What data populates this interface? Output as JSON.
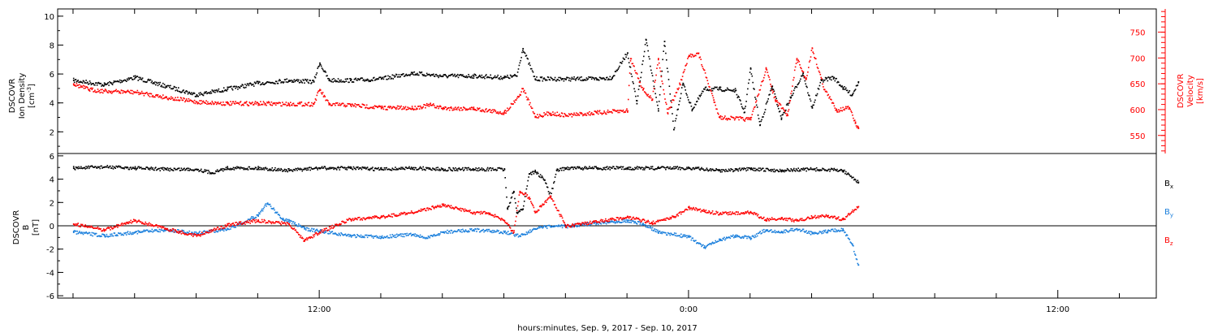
{
  "chart_data": [
    {
      "type": "scatter",
      "panel": "top",
      "y_left_label_lines": [
        "DSCOVR",
        "Ion Density"
      ],
      "y_left_unit_base": "[cm",
      "y_left_unit_sup": "-3",
      "y_left_unit_close": "]",
      "y_left_ticks": [
        "10",
        "8",
        "6",
        "4",
        "2"
      ],
      "ylim_left": [
        0.5,
        10.5
      ],
      "y_right_label_lines": [
        "DSCOVR",
        "Velocity",
        "[km/s]"
      ],
      "y_right_ticks": [
        "750",
        "700",
        "650",
        "600",
        "550"
      ],
      "ylim_right": [
        515,
        795
      ],
      "color_left": "#000000",
      "color_right": "#ff0000",
      "series": [
        {
          "axis": "left",
          "color": "#000000",
          "xy": [
            [
              4.0,
              5.6
            ],
            [
              5.0,
              5.3
            ],
            [
              6.0,
              5.8
            ],
            [
              7.0,
              5.2
            ],
            [
              8.0,
              4.6
            ],
            [
              9.0,
              5.0
            ],
            [
              10.0,
              5.4
            ],
            [
              11.0,
              5.6
            ],
            [
              11.8,
              5.5
            ],
            [
              12.0,
              6.8
            ],
            [
              12.3,
              5.6
            ],
            [
              13.0,
              5.6
            ],
            [
              14.0,
              5.7
            ],
            [
              15.0,
              6.1
            ],
            [
              16.0,
              5.9
            ],
            [
              17.0,
              5.9
            ],
            [
              18.0,
              5.8
            ],
            [
              18.4,
              5.9
            ],
            [
              18.6,
              7.8
            ],
            [
              19.0,
              5.7
            ],
            [
              20.0,
              5.7
            ],
            [
              21.0,
              5.7
            ],
            [
              21.5,
              5.8
            ],
            [
              22.0,
              7.5
            ],
            [
              22.3,
              4.0
            ],
            [
              22.6,
              8.4
            ],
            [
              23.0,
              3.5
            ],
            [
              23.2,
              8.3
            ],
            [
              23.5,
              2.2
            ],
            [
              23.8,
              5.4
            ],
            [
              24.1,
              3.6
            ],
            [
              24.5,
              5.0
            ],
            [
              25.0,
              5.0
            ],
            [
              25.5,
              4.9
            ],
            [
              25.8,
              3.4
            ],
            [
              26.0,
              6.4
            ],
            [
              26.3,
              2.5
            ],
            [
              26.7,
              5.2
            ],
            [
              27.0,
              3.0
            ],
            [
              27.3,
              4.4
            ],
            [
              27.7,
              6.1
            ],
            [
              28.0,
              3.7
            ],
            [
              28.3,
              5.6
            ],
            [
              28.7,
              5.8
            ],
            [
              29.0,
              5.1
            ],
            [
              29.3,
              4.6
            ],
            [
              29.5,
              5.5
            ]
          ]
        },
        {
          "axis": "right",
          "color": "#ff0000",
          "xy": [
            [
              4.0,
              651
            ],
            [
              4.5,
              640
            ],
            [
              5.0,
              637
            ],
            [
              6.0,
              635
            ],
            [
              7.0,
              625
            ],
            [
              8.0,
              616
            ],
            [
              9.0,
              613
            ],
            [
              10.0,
              613
            ],
            [
              11.0,
              612
            ],
            [
              11.8,
              612
            ],
            [
              12.0,
              640
            ],
            [
              12.3,
              611
            ],
            [
              13.0,
              610
            ],
            [
              14.0,
              605
            ],
            [
              15.0,
              604
            ],
            [
              15.6,
              610
            ],
            [
              16.0,
              604
            ],
            [
              17.0,
              603
            ],
            [
              18.0,
              595
            ],
            [
              18.5,
              630
            ],
            [
              18.6,
              642
            ],
            [
              19.0,
              588
            ],
            [
              19.5,
              594
            ],
            [
              20.0,
              590
            ],
            [
              21.0,
              595
            ],
            [
              22.0,
              599
            ],
            [
              22.1,
              700
            ],
            [
              22.5,
              640
            ],
            [
              22.8,
              620
            ],
            [
              23.0,
              700
            ],
            [
              23.3,
              595
            ],
            [
              23.7,
              650
            ],
            [
              24.0,
              705
            ],
            [
              24.3,
              710
            ],
            [
              24.8,
              620
            ],
            [
              25.0,
              586
            ],
            [
              26.0,
              582
            ],
            [
              26.5,
              680
            ],
            [
              26.8,
              620
            ],
            [
              27.2,
              590
            ],
            [
              27.5,
              700
            ],
            [
              27.8,
              660
            ],
            [
              28.0,
              720
            ],
            [
              28.4,
              640
            ],
            [
              28.8,
              600
            ],
            [
              29.2,
              605
            ],
            [
              29.4,
              575
            ],
            [
              29.5,
              565
            ]
          ]
        }
      ]
    },
    {
      "type": "scatter",
      "panel": "bottom",
      "y_label_lines": [
        "DSCOVR",
        "B",
        "[nT]"
      ],
      "y_ticks": [
        "6",
        "4",
        "2",
        "0",
        "-2",
        "-4",
        "-6"
      ],
      "ylim": [
        -6.2,
        6.2
      ],
      "zero_line": true,
      "legend_entries": [
        {
          "base": "B",
          "sub": "x",
          "color": "#000000"
        },
        {
          "base": "B",
          "sub": "y",
          "color": "#1a7fdc"
        },
        {
          "base": "B",
          "sub": "z",
          "color": "#ff0000"
        }
      ],
      "series": [
        {
          "name": "Bx",
          "color": "#000000",
          "xy": [
            [
              4.0,
              5.0
            ],
            [
              5.0,
              5.1
            ],
            [
              6.0,
              5.0
            ],
            [
              7.0,
              4.9
            ],
            [
              8.0,
              4.9
            ],
            [
              8.5,
              4.6
            ],
            [
              9.0,
              5.0
            ],
            [
              10.0,
              5.0
            ],
            [
              11.0,
              4.8
            ],
            [
              12.0,
              5.0
            ],
            [
              13.0,
              5.0
            ],
            [
              14.0,
              4.9
            ],
            [
              15.0,
              5.0
            ],
            [
              16.0,
              4.9
            ],
            [
              17.0,
              4.9
            ],
            [
              18.0,
              4.9
            ],
            [
              18.1,
              1.5
            ],
            [
              18.3,
              3.0
            ],
            [
              18.4,
              1.2
            ],
            [
              18.6,
              1.5
            ],
            [
              18.8,
              4.5
            ],
            [
              19.0,
              4.7
            ],
            [
              19.3,
              4.0
            ],
            [
              19.5,
              2.6
            ],
            [
              19.7,
              4.8
            ],
            [
              20.0,
              5.0
            ],
            [
              21.0,
              5.0
            ],
            [
              22.0,
              5.0
            ],
            [
              23.0,
              5.0
            ],
            [
              24.0,
              5.0
            ],
            [
              25.0,
              4.8
            ],
            [
              26.0,
              4.9
            ],
            [
              27.0,
              4.8
            ],
            [
              28.0,
              4.9
            ],
            [
              29.0,
              4.8
            ],
            [
              29.5,
              3.8
            ]
          ]
        },
        {
          "name": "By",
          "color": "#1a7fdc",
          "xy": [
            [
              4.0,
              -0.5
            ],
            [
              5.0,
              -0.8
            ],
            [
              6.0,
              -0.5
            ],
            [
              7.0,
              -0.3
            ],
            [
              8.0,
              -0.6
            ],
            [
              9.0,
              -0.2
            ],
            [
              9.5,
              0.3
            ],
            [
              10.0,
              1.0
            ],
            [
              10.3,
              2.0
            ],
            [
              10.8,
              0.6
            ],
            [
              11.0,
              0.5
            ],
            [
              11.5,
              -0.2
            ],
            [
              12.0,
              -0.4
            ],
            [
              12.5,
              -0.6
            ],
            [
              13.0,
              -0.8
            ],
            [
              14.0,
              -0.9
            ],
            [
              15.0,
              -0.7
            ],
            [
              15.5,
              -1.0
            ],
            [
              16.0,
              -0.5
            ],
            [
              17.0,
              -0.3
            ],
            [
              18.0,
              -0.5
            ],
            [
              18.5,
              -0.8
            ],
            [
              19.0,
              -0.2
            ],
            [
              19.5,
              0.0
            ],
            [
              20.0,
              0.0
            ],
            [
              21.0,
              0.3
            ],
            [
              22.0,
              0.5
            ],
            [
              22.5,
              0.2
            ],
            [
              23.0,
              -0.5
            ],
            [
              24.0,
              -0.9
            ],
            [
              24.5,
              -1.8
            ],
            [
              25.0,
              -1.2
            ],
            [
              25.5,
              -0.8
            ],
            [
              26.0,
              -1.0
            ],
            [
              26.5,
              -0.3
            ],
            [
              27.0,
              -0.5
            ],
            [
              27.5,
              -0.2
            ],
            [
              28.0,
              -0.6
            ],
            [
              28.5,
              -0.4
            ],
            [
              29.0,
              -0.3
            ],
            [
              29.3,
              -1.5
            ],
            [
              29.5,
              -3.3
            ]
          ]
        },
        {
          "name": "Bz",
          "color": "#ff0000",
          "xy": [
            [
              4.0,
              0.2
            ],
            [
              5.0,
              -0.3
            ],
            [
              6.0,
              0.5
            ],
            [
              7.0,
              -0.2
            ],
            [
              8.0,
              -0.8
            ],
            [
              9.0,
              0.1
            ],
            [
              10.0,
              0.5
            ],
            [
              11.0,
              0.2
            ],
            [
              11.5,
              -1.2
            ],
            [
              12.0,
              -0.5
            ],
            [
              13.0,
              0.6
            ],
            [
              14.0,
              0.8
            ],
            [
              15.0,
              1.2
            ],
            [
              16.0,
              1.8
            ],
            [
              16.5,
              1.5
            ],
            [
              17.0,
              1.2
            ],
            [
              17.5,
              1.1
            ],
            [
              18.0,
              0.5
            ],
            [
              18.3,
              -0.5
            ],
            [
              18.5,
              3.0
            ],
            [
              18.8,
              2.5
            ],
            [
              19.0,
              1.2
            ],
            [
              19.5,
              2.6
            ],
            [
              20.0,
              0.0
            ],
            [
              21.0,
              0.4
            ],
            [
              22.0,
              0.8
            ],
            [
              22.8,
              0.3
            ],
            [
              23.5,
              0.8
            ],
            [
              24.0,
              1.6
            ],
            [
              24.5,
              1.3
            ],
            [
              25.0,
              1.1
            ],
            [
              26.0,
              1.2
            ],
            [
              26.5,
              0.6
            ],
            [
              27.0,
              0.7
            ],
            [
              27.5,
              0.5
            ],
            [
              28.0,
              0.8
            ],
            [
              28.5,
              0.9
            ],
            [
              29.0,
              0.6
            ],
            [
              29.5,
              1.7
            ]
          ]
        }
      ]
    }
  ],
  "x_axis": {
    "title": "hours:minutes, Sep.  9, 2017 - Sep. 10, 2017",
    "tick_labels": [
      {
        "label": "12:00",
        "hour": 12
      },
      {
        "label": "0:00",
        "hour": 24
      },
      {
        "label": "12:00",
        "hour": 36
      }
    ],
    "xlim_hours": [
      3.5,
      39.2
    ],
    "minor_tick_step_hours": 2
  }
}
